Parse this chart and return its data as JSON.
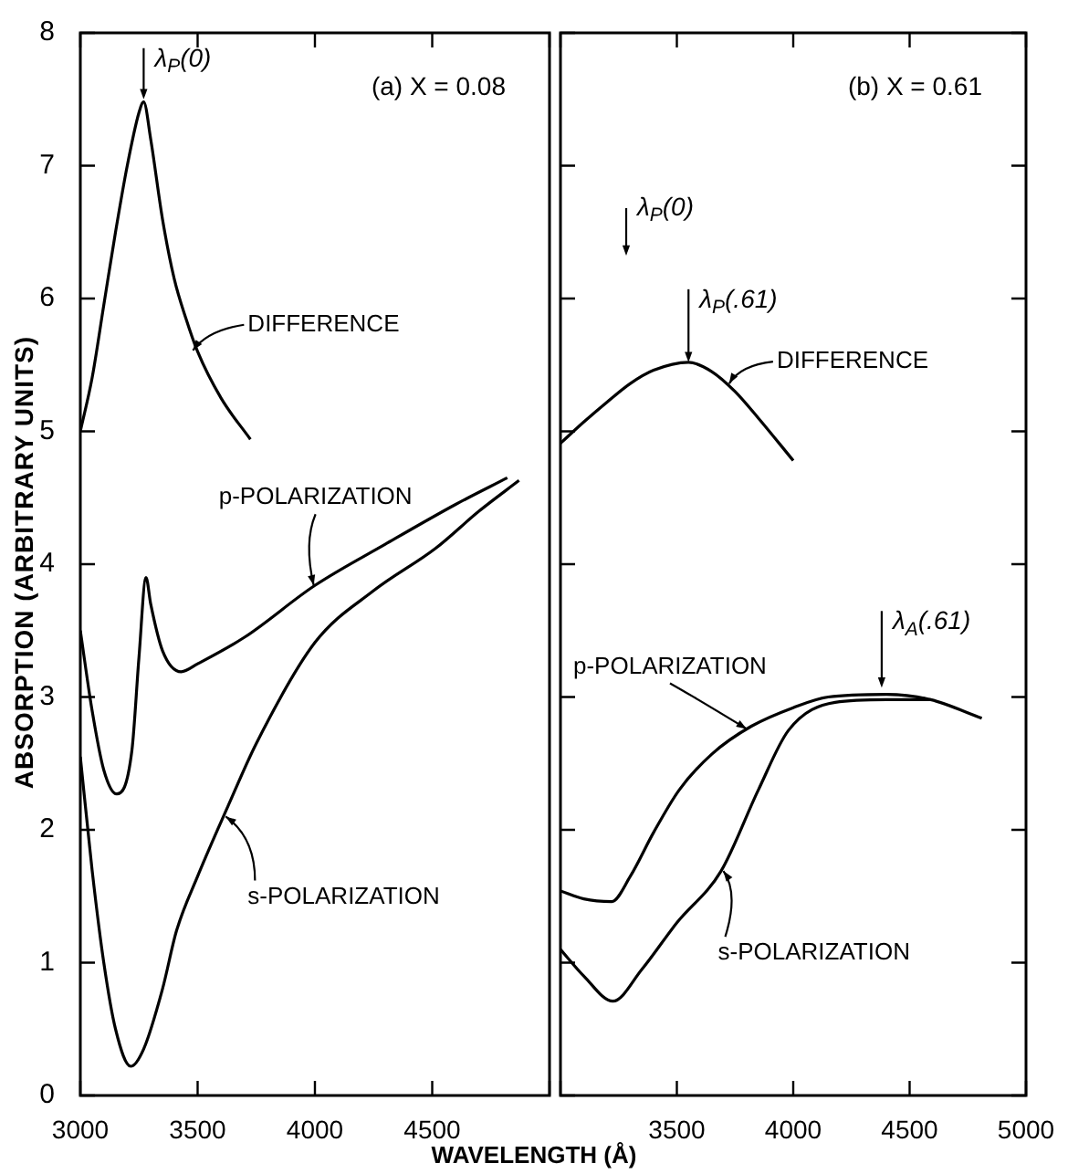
{
  "chart_data": [
    {
      "type": "line",
      "title": "(a) X = 0.08",
      "xlabel": "WAVELENGTH (Å)",
      "ylabel": "ABSORPTION (ARBITRARY UNITS)",
      "xlim": [
        3000,
        5000
      ],
      "xticks": [
        3000,
        3500,
        4000,
        4500,
        {
          "value": 5000,
          "label": null
        }
      ],
      "ylim": [
        0,
        8
      ],
      "yticks": [
        0,
        1,
        2,
        3,
        4,
        5,
        6,
        7,
        8
      ],
      "grid": false,
      "legend": false,
      "marker": "none",
      "line_style": "solid",
      "series": [
        {
          "color": "#000000",
          "x": [
            3000,
            3050,
            3100,
            3150,
            3200,
            3250,
            3270,
            3300,
            3350,
            3400,
            3450,
            3500,
            3600,
            3725
          ],
          "values": [
            5.0,
            5.4,
            5.95,
            6.5,
            7.0,
            7.4,
            7.48,
            7.2,
            6.6,
            6.15,
            5.85,
            5.6,
            5.25,
            4.94
          ]
        },
        {
          "color": "#000000",
          "x": [
            3000,
            3050,
            3100,
            3155,
            3220,
            3250,
            3280,
            3300,
            3350,
            3430,
            3500,
            3700,
            4000,
            4300,
            4600,
            4820
          ],
          "values": [
            3.5,
            2.9,
            2.45,
            2.27,
            2.6,
            3.3,
            3.9,
            3.7,
            3.35,
            3.19,
            3.25,
            3.45,
            3.84,
            4.15,
            4.45,
            4.65
          ]
        },
        {
          "color": "#000000",
          "x": [
            3000,
            3050,
            3100,
            3150,
            3215,
            3270,
            3350,
            3410,
            3500,
            3625,
            3750,
            4000,
            4250,
            4515,
            4700,
            4870
          ],
          "values": [
            2.55,
            1.7,
            1.0,
            0.5,
            0.22,
            0.35,
            0.8,
            1.24,
            1.65,
            2.16,
            2.65,
            3.41,
            3.8,
            4.12,
            4.4,
            4.63
          ]
        }
      ],
      "annotations": [
        {
          "text": "λ$_{P}$(0)",
          "x": 3270,
          "y": 7.5
        },
        {
          "text": "DIFFERENCE",
          "x": 3480,
          "y": 5.61
        },
        {
          "text": "p-POLARIZATION",
          "x": 3995,
          "y": 3.84
        },
        {
          "text": "s-POLARIZATION",
          "x": 3620,
          "y": 2.1
        }
      ]
    },
    {
      "type": "line",
      "title": "(b) X = 0.61",
      "xlim": [
        3000,
        5000
      ],
      "xticks": [
        {
          "value": 3000,
          "label": null
        },
        3500,
        4000,
        4500,
        5000
      ],
      "ylim": [
        0,
        8
      ],
      "yticks": [
        0,
        1,
        2,
        3,
        4,
        5,
        6,
        7,
        8
      ],
      "tick_labels": "x",
      "grid": false,
      "legend": false,
      "marker": "none",
      "line_style": "solid",
      "series": [
        {
          "color": "#000000",
          "x": [
            3000,
            3100,
            3200,
            3300,
            3400,
            3550,
            3650,
            3750,
            3850,
            4000
          ],
          "values": [
            4.91,
            5.07,
            5.22,
            5.36,
            5.46,
            5.52,
            5.45,
            5.3,
            5.1,
            4.78
          ]
        },
        {
          "color": "#000000",
          "x": [
            3000,
            3100,
            3220,
            3300,
            3400,
            3510,
            3650,
            3820,
            4000,
            4150,
            4400,
            4590,
            4810
          ],
          "values": [
            1.54,
            1.48,
            1.46,
            1.65,
            1.98,
            2.3,
            2.57,
            2.78,
            2.92,
            3.0,
            3.02,
            2.98,
            2.84
          ]
        },
        {
          "color": "#000000",
          "x": [
            3000,
            3100,
            3225,
            3350,
            3500,
            3690,
            3850,
            3980,
            4180,
            4400,
            4590
          ],
          "values": [
            1.1,
            0.9,
            0.71,
            0.95,
            1.3,
            1.69,
            2.3,
            2.75,
            2.96,
            2.98,
            2.98
          ]
        }
      ],
      "annotations": [
        "λ$_{P}$(0)",
        {
          "text": "λ$_{P}$(.61)",
          "x": 3550,
          "y": 5.52
        },
        {
          "text": "DIFFERENCE",
          "x": 3725,
          "y": 5.36
        },
        {
          "text": "λ$_{A}$(.61)",
          "x": 4380,
          "y": 3.07
        },
        {
          "text": "p-POLARIZATION",
          "x": 3800,
          "y": 2.76
        },
        {
          "text": "s-POLARIZATION",
          "x": 3700,
          "y": 1.69
        }
      ]
    }
  ]
}
